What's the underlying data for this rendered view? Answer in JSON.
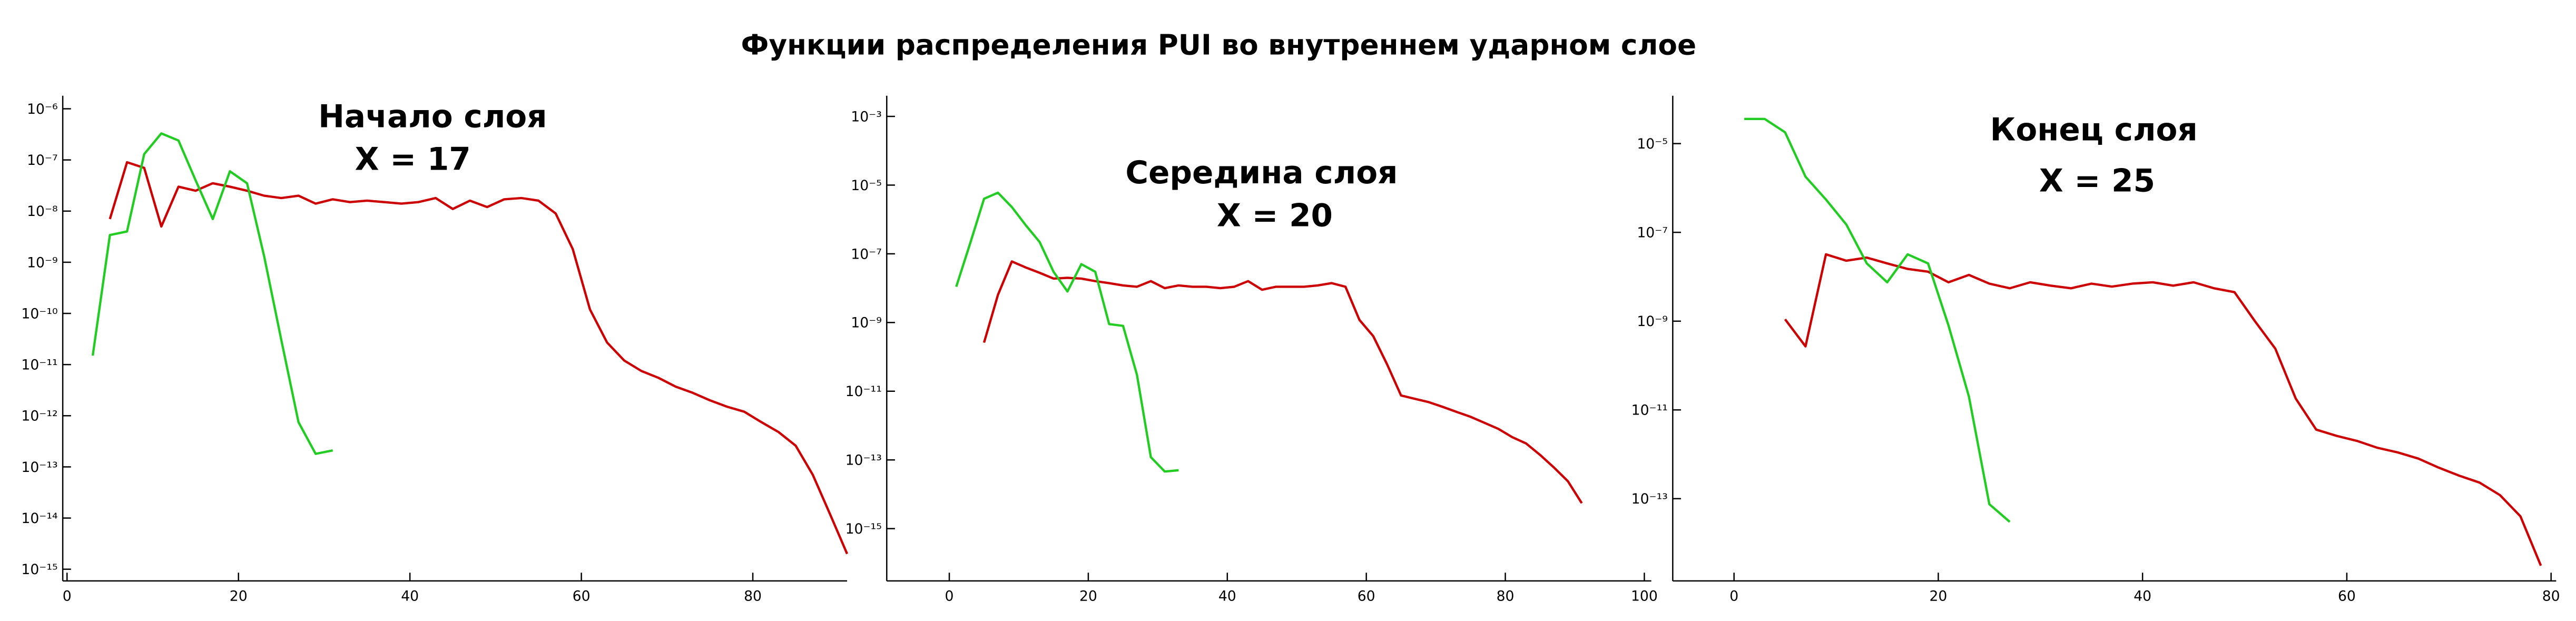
{
  "title": "Функции распределения PUI во внутреннем ударном слое",
  "chart_data": [
    {
      "type": "line",
      "annotation": [
        "Начало слоя",
        "X = 17"
      ],
      "log_y": true,
      "xlim": [
        -0.5,
        91
      ],
      "ylim": [
        5.9e-16,
        1.8e-06
      ],
      "xticks": [
        0,
        20,
        40,
        60,
        80
      ],
      "yticks": [
        {
          "value": 1e-06,
          "label": "10⁻⁶"
        },
        {
          "value": 1e-07,
          "label": "10⁻⁷"
        },
        {
          "value": 1e-08,
          "label": "10⁻⁸"
        },
        {
          "value": 1e-09,
          "label": "10⁻⁹"
        },
        {
          "value": 1e-10,
          "label": "10⁻¹⁰"
        },
        {
          "value": 1e-11,
          "label": "10⁻¹¹"
        },
        {
          "value": 1e-12,
          "label": "10⁻¹²"
        },
        {
          "value": 1e-13,
          "label": "10⁻¹³"
        },
        {
          "value": 1e-14,
          "label": "10⁻¹⁴"
        },
        {
          "value": 1e-15,
          "label": "10⁻¹⁵"
        }
      ],
      "series": [
        {
          "color": "#cc0000",
          "x": [
            5,
            7,
            9,
            11,
            13,
            15,
            17,
            19,
            21,
            23,
            25,
            27,
            29,
            31,
            33,
            35,
            37,
            39,
            41,
            43,
            45,
            47,
            49,
            51,
            53,
            55,
            57,
            59,
            61,
            63,
            65,
            67,
            69,
            71,
            73,
            75,
            77,
            79,
            81,
            83,
            85,
            87,
            89,
            91
          ],
          "values": [
            7e-09,
            9e-08,
            7e-08,
            5e-09,
            3e-08,
            2.5e-08,
            3.5e-08,
            3e-08,
            2.5e-08,
            2e-08,
            1.8e-08,
            2e-08,
            1.4e-08,
            1.7e-08,
            1.5e-08,
            1.6e-08,
            1.5e-08,
            1.4e-08,
            1.5e-08,
            1.8e-08,
            1.1e-08,
            1.6e-08,
            1.2e-08,
            1.7e-08,
            1.8e-08,
            1.6e-08,
            9e-09,
            1.8e-09,
            1.2e-10,
            2.7e-11,
            1.2e-11,
            7.5e-12,
            5.5e-12,
            3.7e-12,
            2.8e-12,
            2e-12,
            1.5e-12,
            1.2e-12,
            7.5e-13,
            4.8e-13,
            2.6e-13,
            7e-14,
            1.2e-14,
            2e-15
          ]
        },
        {
          "color": "#22cc22",
          "x": [
            3,
            5,
            7,
            9,
            11,
            13,
            15,
            17,
            19,
            21,
            23,
            25,
            27,
            29,
            31
          ],
          "values": [
            1.5e-11,
            3.4e-09,
            4e-09,
            1.3e-07,
            3.3e-07,
            2.4e-07,
            4e-08,
            7e-09,
            6e-08,
            3.5e-08,
            1.3e-09,
            3e-11,
            7.5e-13,
            1.8e-13,
            2.1e-13
          ]
        }
      ]
    },
    {
      "type": "line",
      "annotation": [
        "Середина слоя",
        "X = 20"
      ],
      "log_y": true,
      "xlim": [
        -9,
        101
      ],
      "ylim": [
        3e-17,
        0.004
      ],
      "xticks": [
        0,
        20,
        40,
        60,
        80,
        100
      ],
      "yticks": [
        {
          "value": 0.001,
          "label": "10⁻³"
        },
        {
          "value": 1e-05,
          "label": "10⁻⁵"
        },
        {
          "value": 1e-07,
          "label": "10⁻⁷"
        },
        {
          "value": 1e-09,
          "label": "10⁻⁹"
        },
        {
          "value": 1e-11,
          "label": "10⁻¹¹"
        },
        {
          "value": 1e-13,
          "label": "10⁻¹³"
        },
        {
          "value": 1e-15,
          "label": "10⁻¹⁵"
        }
      ],
      "series": [
        {
          "color": "#cc0000",
          "x": [
            5,
            7,
            9,
            11,
            13,
            15,
            17,
            19,
            21,
            23,
            25,
            27,
            29,
            31,
            33,
            35,
            37,
            39,
            41,
            43,
            45,
            47,
            49,
            51,
            53,
            55,
            57,
            59,
            61,
            63,
            65,
            67,
            69,
            71,
            73,
            75,
            77,
            79,
            81,
            83,
            85,
            87,
            89,
            91
          ],
          "values": [
            2.6e-10,
            6.4e-09,
            6e-08,
            4e-08,
            2.8e-08,
            1.9e-08,
            2e-08,
            1.9e-08,
            1.6e-08,
            1.4e-08,
            1.2e-08,
            1.1e-08,
            1.6e-08,
            1e-08,
            1.2e-08,
            1.1e-08,
            1.1e-08,
            1e-08,
            1.1e-08,
            1.6e-08,
            9e-09,
            1.1e-08,
            1.1e-08,
            1.1e-08,
            1.2e-08,
            1.4e-08,
            1.1e-08,
            1.2e-09,
            4e-10,
            6e-11,
            7.5e-12,
            6e-12,
            4.8e-12,
            3.5e-12,
            2.5e-12,
            1.8e-12,
            1.2e-12,
            8e-13,
            4.6e-13,
            3e-13,
            1.4e-13,
            6e-14,
            2.4e-14,
            5.5e-15
          ]
        },
        {
          "color": "#22cc22",
          "x": [
            1,
            3,
            5,
            7,
            9,
            11,
            13,
            15,
            17,
            19,
            21,
            23,
            25,
            27,
            29,
            31,
            33
          ],
          "values": [
            1.1e-08,
            2e-07,
            4e-06,
            6e-06,
            2.3e-06,
            6.8e-07,
            2.2e-07,
            3e-08,
            8e-09,
            5e-08,
            3e-08,
            9e-10,
            8e-10,
            3e-11,
            1.2e-13,
            4.6e-14,
            5e-14
          ]
        }
      ]
    },
    {
      "type": "line",
      "annotation": [
        "Конец слоя",
        "X = 25"
      ],
      "log_y": true,
      "xlim": [
        -6,
        80.5
      ],
      "ylim": [
        1.4e-15,
        0.00012
      ],
      "xticks": [
        0,
        20,
        40,
        60,
        80
      ],
      "yticks": [
        {
          "value": 1e-05,
          "label": "10⁻⁵"
        },
        {
          "value": 1e-07,
          "label": "10⁻⁷"
        },
        {
          "value": 1e-09,
          "label": "10⁻⁹"
        },
        {
          "value": 1e-11,
          "label": "10⁻¹¹"
        },
        {
          "value": 1e-13,
          "label": "10⁻¹³"
        }
      ],
      "series": [
        {
          "color": "#cc0000",
          "x": [
            5,
            7,
            9,
            11,
            13,
            15,
            17,
            19,
            21,
            23,
            25,
            27,
            29,
            31,
            33,
            35,
            37,
            39,
            41,
            43,
            45,
            47,
            49,
            51,
            53,
            55,
            57,
            59,
            61,
            63,
            65,
            67,
            69,
            71,
            73,
            75,
            77,
            79
          ],
          "values": [
            1.1e-09,
            2.7e-10,
            3.2e-08,
            2.3e-08,
            2.7e-08,
            2e-08,
            1.5e-08,
            1.3e-08,
            7.5e-09,
            1.1e-08,
            7e-09,
            5.5e-09,
            7.5e-09,
            6.3e-09,
            5.5e-09,
            7e-09,
            6e-09,
            7e-09,
            7.5e-09,
            6.3e-09,
            7.5e-09,
            5.5e-09,
            4.5e-09,
            1e-09,
            2.4e-10,
            1.8e-11,
            3.6e-12,
            2.6e-12,
            2e-12,
            1.4e-12,
            1.1e-12,
            8e-13,
            5e-13,
            3.3e-13,
            2.3e-13,
            1.2e-13,
            4e-14,
            3.1e-15
          ]
        },
        {
          "color": "#22cc22",
          "x": [
            1,
            3,
            5,
            7,
            9,
            11,
            13,
            15,
            17,
            19,
            21,
            23,
            25,
            27
          ],
          "values": [
            3.6e-05,
            3.6e-05,
            1.8e-05,
            1.8e-06,
            5.5e-07,
            1.5e-07,
            2e-08,
            7.5e-09,
            3.2e-08,
            2e-08,
            8e-10,
            2e-11,
            7.5e-14,
            3e-14
          ]
        }
      ]
    }
  ]
}
